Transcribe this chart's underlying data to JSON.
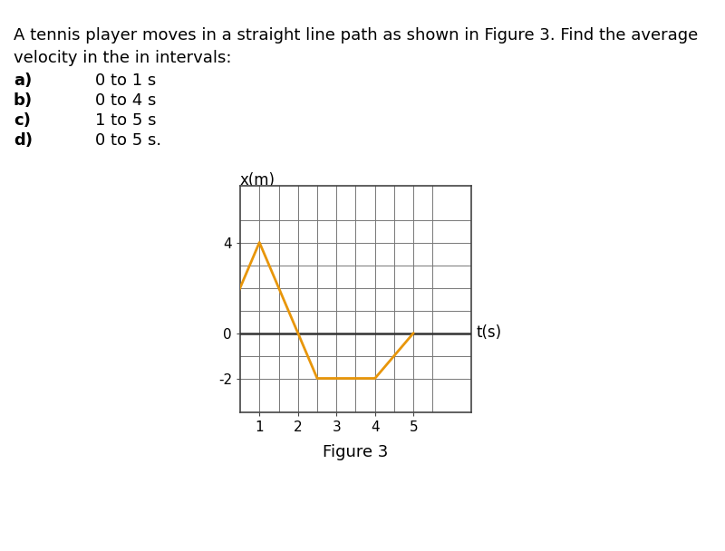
{
  "line1": "A tennis player moves in a straight line path as shown in Figure 3. Find the average",
  "line2": "velocity in the in intervals:",
  "items": [
    {
      "label": "a)",
      "text": "0 to 1 s"
    },
    {
      "label": "b)",
      "text": "0 to 4 s"
    },
    {
      "label": "c)",
      "text": "1 to 5 s"
    },
    {
      "label": "d)",
      "text": "0 to 5 s."
    }
  ],
  "figure_label": "Figure 3",
  "xlabel": "t(s)",
  "ylabel": "x(m)",
  "line_x": [
    0,
    1,
    2.5,
    4,
    5
  ],
  "line_y": [
    0,
    4,
    -2,
    -2,
    0
  ],
  "line_color": "#E8960A",
  "line_width": 2.0,
  "xlim": [
    0.5,
    6.5
  ],
  "ylim": [
    -3.5,
    6.5
  ],
  "xticks": [
    1,
    2,
    3,
    4,
    5
  ],
  "yticks": [
    -2,
    0,
    4
  ],
  "grid_color": "#777777",
  "axis_color": "#333333",
  "box_color": "#444444",
  "bg_color": "#ffffff",
  "text_color": "#000000",
  "font_size_body": 13,
  "font_size_axis_label": 12,
  "font_size_tick": 11,
  "font_size_caption": 13
}
